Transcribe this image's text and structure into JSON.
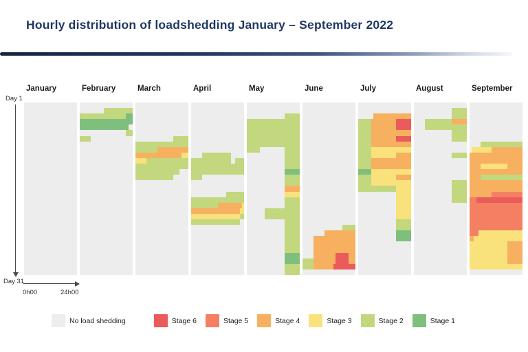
{
  "title": "Hourly distribution of loadshedding January – September 2022",
  "colors": {
    "title_navy": "#1F3864",
    "none": "#EDEDED",
    "stage1": "#7FBF7D",
    "stage2": "#C2D77E",
    "stage3": "#F9E17C",
    "stage4": "#F7B05F",
    "stage5": "#F47F62",
    "stage6": "#EA5B5B"
  },
  "axis": {
    "day_start_label": "Day 1",
    "day_end_label": "Day 31",
    "hour_start_label": "0h00",
    "hour_end_label": "24h00"
  },
  "legend": {
    "items": [
      {
        "label": "No load shedding",
        "stage": 0,
        "color": "#EDEDED"
      },
      {
        "label": "Stage 6",
        "stage": 6,
        "color": "#EA5B5B"
      },
      {
        "label": "Stage 5",
        "stage": 5,
        "color": "#F47F62"
      },
      {
        "label": "Stage 4",
        "stage": 4,
        "color": "#F7B05F"
      },
      {
        "label": "Stage 3",
        "stage": 3,
        "color": "#F9E17C"
      },
      {
        "label": "Stage 2",
        "stage": 2,
        "color": "#C2D77E"
      },
      {
        "label": "Stage 1",
        "stage": 1,
        "color": "#7FBF7D"
      }
    ]
  },
  "chart_data": {
    "type": "heatmap",
    "title": "Hourly distribution of loadshedding January – September 2022",
    "x_axis": {
      "label_left": "0h00",
      "label_right": "24h00",
      "range": [
        0,
        24
      ],
      "unit": "hour of day, per month panel"
    },
    "y_axis": {
      "label_top": "Day 1",
      "label_bottom": "Day 31",
      "range": [
        1,
        31
      ],
      "unit": "day of month"
    },
    "legend_entries": [
      "No load shedding",
      "Stage 6",
      "Stage 5",
      "Stage 4",
      "Stage 3",
      "Stage 2",
      "Stage 1"
    ],
    "legend_position": "bottom",
    "grid": false,
    "block_format": "[day_start, day_end, hour_start, hour_end, stage] — days inclusive 1-31, hours 0-24, stage 1-6; unlisted cells = no load shedding",
    "months": [
      {
        "name": "January",
        "blocks": []
      },
      {
        "name": "February",
        "blocks": [
          [
            2,
            2,
            11,
            24,
            2
          ],
          [
            3,
            3,
            0,
            21,
            2
          ],
          [
            3,
            4,
            21,
            24,
            1
          ],
          [
            4,
            4,
            0,
            21,
            1
          ],
          [
            5,
            5,
            0,
            22,
            1
          ],
          [
            6,
            6,
            21,
            24,
            2
          ],
          [
            7,
            7,
            0,
            5,
            2
          ]
        ]
      },
      {
        "name": "March",
        "blocks": [
          [
            7,
            7,
            17,
            24,
            2
          ],
          [
            8,
            8,
            0,
            24,
            2
          ],
          [
            9,
            9,
            0,
            10,
            2
          ],
          [
            9,
            9,
            10,
            24,
            4
          ],
          [
            10,
            10,
            0,
            21,
            4
          ],
          [
            10,
            10,
            21,
            24,
            3
          ],
          [
            11,
            11,
            0,
            5,
            3
          ],
          [
            11,
            11,
            5,
            24,
            2
          ],
          [
            12,
            12,
            0,
            24,
            2
          ],
          [
            13,
            13,
            0,
            20,
            2
          ],
          [
            14,
            14,
            0,
            17,
            2
          ]
        ]
      },
      {
        "name": "April",
        "blocks": [
          [
            10,
            10,
            5,
            18,
            2
          ],
          [
            11,
            11,
            0,
            18,
            2
          ],
          [
            11,
            11,
            20,
            24,
            2
          ],
          [
            12,
            13,
            0,
            24,
            2
          ],
          [
            14,
            14,
            0,
            5,
            2
          ],
          [
            17,
            17,
            16,
            24,
            2
          ],
          [
            18,
            18,
            0,
            24,
            2
          ],
          [
            19,
            19,
            0,
            12,
            2
          ],
          [
            19,
            19,
            12,
            23,
            4
          ],
          [
            19,
            19,
            23,
            24,
            3
          ],
          [
            20,
            20,
            0,
            22,
            4
          ],
          [
            20,
            20,
            22,
            24,
            3
          ],
          [
            21,
            21,
            0,
            22,
            3
          ],
          [
            21,
            21,
            22,
            24,
            2
          ],
          [
            22,
            22,
            0,
            22,
            2
          ]
        ]
      },
      {
        "name": "May",
        "blocks": [
          [
            3,
            3,
            17,
            24,
            2
          ],
          [
            4,
            8,
            0,
            24,
            2
          ],
          [
            9,
            9,
            0,
            6,
            2
          ],
          [
            9,
            12,
            17,
            24,
            2
          ],
          [
            13,
            13,
            17,
            24,
            1
          ],
          [
            14,
            15,
            17,
            24,
            2
          ],
          [
            16,
            16,
            17,
            24,
            4
          ],
          [
            17,
            17,
            17,
            24,
            3
          ],
          [
            18,
            27,
            17,
            24,
            2
          ],
          [
            20,
            21,
            8,
            17,
            2
          ],
          [
            28,
            29,
            17,
            24,
            1
          ],
          [
            30,
            31,
            17,
            24,
            2
          ]
        ]
      },
      {
        "name": "June",
        "blocks": [
          [
            23,
            23,
            18,
            24,
            2
          ],
          [
            24,
            24,
            10,
            24,
            4
          ],
          [
            25,
            27,
            5,
            24,
            4
          ],
          [
            28,
            28,
            5,
            15,
            4
          ],
          [
            28,
            28,
            15,
            21,
            6
          ],
          [
            28,
            28,
            21,
            24,
            4
          ],
          [
            29,
            29,
            0,
            5,
            2
          ],
          [
            29,
            29,
            5,
            15,
            4
          ],
          [
            29,
            29,
            15,
            21,
            6
          ],
          [
            29,
            29,
            21,
            24,
            4
          ],
          [
            30,
            30,
            0,
            5,
            2
          ],
          [
            30,
            30,
            5,
            14,
            4
          ],
          [
            30,
            30,
            14,
            24,
            6
          ]
        ]
      },
      {
        "name": "July",
        "blocks": [
          [
            3,
            3,
            7,
            24,
            4
          ],
          [
            4,
            5,
            0,
            6,
            2
          ],
          [
            4,
            5,
            6,
            17,
            4
          ],
          [
            4,
            5,
            17,
            24,
            6
          ],
          [
            6,
            6,
            0,
            6,
            2
          ],
          [
            6,
            6,
            6,
            24,
            4
          ],
          [
            7,
            7,
            0,
            6,
            2
          ],
          [
            7,
            7,
            6,
            17,
            4
          ],
          [
            7,
            7,
            17,
            24,
            6
          ],
          [
            8,
            8,
            0,
            6,
            2
          ],
          [
            8,
            8,
            6,
            24,
            4
          ],
          [
            9,
            9,
            0,
            6,
            2
          ],
          [
            9,
            9,
            6,
            24,
            3
          ],
          [
            10,
            10,
            0,
            6,
            2
          ],
          [
            10,
            10,
            6,
            17,
            3
          ],
          [
            10,
            10,
            17,
            24,
            4
          ],
          [
            11,
            12,
            0,
            6,
            2
          ],
          [
            11,
            12,
            6,
            24,
            4
          ],
          [
            13,
            13,
            0,
            6,
            1
          ],
          [
            13,
            13,
            6,
            24,
            3
          ],
          [
            14,
            14,
            0,
            6,
            2
          ],
          [
            14,
            14,
            6,
            17,
            3
          ],
          [
            14,
            14,
            17,
            24,
            4
          ],
          [
            15,
            15,
            0,
            6,
            2
          ],
          [
            15,
            15,
            6,
            24,
            3
          ],
          [
            16,
            16,
            0,
            17,
            2
          ],
          [
            16,
            16,
            17,
            24,
            3
          ],
          [
            17,
            21,
            17,
            24,
            3
          ],
          [
            22,
            23,
            17,
            24,
            2
          ],
          [
            24,
            25,
            17,
            24,
            1
          ]
        ]
      },
      {
        "name": "August",
        "blocks": [
          [
            2,
            3,
            17,
            24,
            2
          ],
          [
            4,
            4,
            17,
            24,
            4
          ],
          [
            4,
            5,
            5,
            17,
            2
          ],
          [
            5,
            7,
            17,
            24,
            2
          ],
          [
            10,
            10,
            17,
            24,
            2
          ],
          [
            15,
            18,
            17,
            24,
            2
          ]
        ]
      },
      {
        "name": "September",
        "blocks": [
          [
            8,
            8,
            5,
            24,
            2
          ],
          [
            9,
            9,
            1,
            10,
            3
          ],
          [
            9,
            9,
            10,
            24,
            4
          ],
          [
            10,
            11,
            0,
            24,
            4
          ],
          [
            12,
            12,
            0,
            5,
            4
          ],
          [
            12,
            12,
            5,
            17,
            3
          ],
          [
            12,
            12,
            17,
            24,
            4
          ],
          [
            13,
            13,
            0,
            24,
            4
          ],
          [
            14,
            14,
            0,
            5,
            4
          ],
          [
            14,
            14,
            5,
            24,
            2
          ],
          [
            15,
            16,
            0,
            24,
            4
          ],
          [
            17,
            17,
            0,
            10,
            4
          ],
          [
            17,
            17,
            10,
            24,
            5
          ],
          [
            18,
            18,
            0,
            3,
            5
          ],
          [
            18,
            18,
            3,
            24,
            6
          ],
          [
            19,
            23,
            0,
            24,
            5
          ],
          [
            24,
            24,
            0,
            4,
            5
          ],
          [
            24,
            24,
            4,
            24,
            3
          ],
          [
            25,
            25,
            0,
            2,
            4
          ],
          [
            25,
            25,
            2,
            24,
            3
          ],
          [
            26,
            29,
            0,
            17,
            3
          ],
          [
            26,
            29,
            17,
            24,
            4
          ],
          [
            30,
            30,
            0,
            24,
            3
          ]
        ]
      }
    ]
  }
}
